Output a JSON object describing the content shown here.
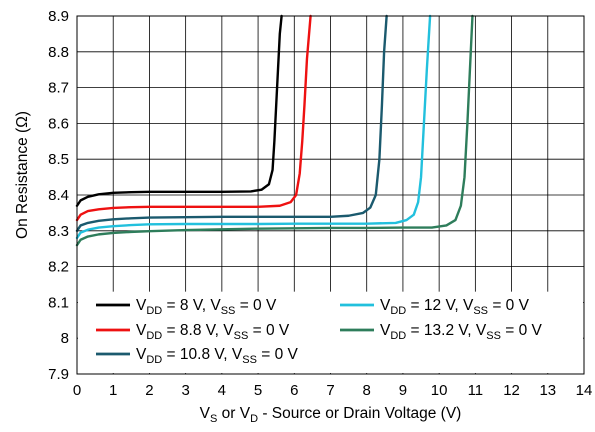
{
  "chart_data": {
    "type": "line",
    "title": "",
    "xlabel": {
      "main": "V",
      "parts": [
        {
          "t": "V"
        },
        {
          "t": "S",
          "sub": true
        },
        {
          "t": " or V"
        },
        {
          "t": "D",
          "sub": true
        },
        {
          "t": " - Source or Drain Voltage (V)"
        }
      ]
    },
    "ylabel": "On Resistance (Ω)",
    "xlim": [
      0,
      14
    ],
    "ylim": [
      7.9,
      8.9
    ],
    "x_ticks": [
      "0",
      "1",
      "2",
      "3",
      "4",
      "5",
      "6",
      "7",
      "8",
      "9",
      "10",
      "11",
      "12",
      "13",
      "14"
    ],
    "y_ticks": [
      "7.9",
      "8",
      "8.1",
      "8.2",
      "8.3",
      "8.4",
      "8.5",
      "8.6",
      "8.7",
      "8.8",
      "8.9"
    ],
    "y_tick_values": [
      7.9,
      8.0,
      8.1,
      8.2,
      8.3,
      8.4,
      8.5,
      8.6,
      8.7,
      8.8,
      8.9
    ],
    "grid": true,
    "legend_position": "bottom",
    "series": [
      {
        "name": "VDD = 8 V, VSS = 0 V",
        "label_parts": [
          {
            "t": "V"
          },
          {
            "t": "DD",
            "sub": true
          },
          {
            "t": " = 8 V, V"
          },
          {
            "t": "SS",
            "sub": true
          },
          {
            "t": " = 0 V"
          }
        ],
        "color": "#000000",
        "x": [
          0,
          0.1,
          0.3,
          0.6,
          1.0,
          1.5,
          2.0,
          3.0,
          4.0,
          4.8,
          5.1,
          5.3,
          5.4,
          5.45,
          5.5,
          5.55,
          5.6,
          5.65
        ],
        "y": [
          8.37,
          8.385,
          8.395,
          8.402,
          8.406,
          8.408,
          8.409,
          8.409,
          8.409,
          8.41,
          8.415,
          8.43,
          8.47,
          8.55,
          8.65,
          8.75,
          8.85,
          8.9
        ]
      },
      {
        "name": "VDD = 8.8 V, VSS = 0 V",
        "label_parts": [
          {
            "t": "V"
          },
          {
            "t": "DD",
            "sub": true
          },
          {
            "t": " = 8.8 V, V"
          },
          {
            "t": "SS",
            "sub": true
          },
          {
            "t": " = 0 V"
          }
        ],
        "color": "#ee1111",
        "x": [
          0,
          0.1,
          0.3,
          0.6,
          1.0,
          1.5,
          2.0,
          3.0,
          4.0,
          5.0,
          5.6,
          5.9,
          6.05,
          6.15,
          6.22,
          6.28,
          6.35,
          6.45
        ],
        "y": [
          8.33,
          8.345,
          8.355,
          8.36,
          8.364,
          8.366,
          8.367,
          8.367,
          8.367,
          8.367,
          8.37,
          8.38,
          8.4,
          8.46,
          8.55,
          8.65,
          8.78,
          8.9
        ]
      },
      {
        "name": "VDD = 10.8 V, VSS = 0 V",
        "label_parts": [
          {
            "t": "V"
          },
          {
            "t": "DD",
            "sub": true
          },
          {
            "t": " = 10.8 V, V"
          },
          {
            "t": "SS",
            "sub": true
          },
          {
            "t": " = 0 V"
          }
        ],
        "color": "#1b5a6e",
        "x": [
          0,
          0.1,
          0.3,
          0.6,
          1.0,
          1.5,
          2.0,
          3.0,
          4.0,
          5.0,
          6.0,
          7.0,
          7.5,
          7.9,
          8.1,
          8.25,
          8.35,
          8.42,
          8.48,
          8.55
        ],
        "y": [
          8.3,
          8.315,
          8.322,
          8.328,
          8.332,
          8.335,
          8.337,
          8.338,
          8.339,
          8.339,
          8.339,
          8.339,
          8.342,
          8.35,
          8.365,
          8.4,
          8.5,
          8.65,
          8.8,
          8.9
        ]
      },
      {
        "name": "VDD = 12 V, VSS = 0 V",
        "label_parts": [
          {
            "t": "V"
          },
          {
            "t": "DD",
            "sub": true
          },
          {
            "t": " = 12 V, V"
          },
          {
            "t": "SS",
            "sub": true
          },
          {
            "t": " = 0 V"
          }
        ],
        "color": "#22c0dd",
        "x": [
          0,
          0.1,
          0.3,
          0.6,
          1.0,
          1.5,
          2.0,
          3.0,
          4.0,
          5.0,
          6.0,
          7.0,
          8.0,
          8.8,
          9.1,
          9.3,
          9.42,
          9.5,
          9.58,
          9.66,
          9.75
        ],
        "y": [
          8.28,
          8.295,
          8.303,
          8.309,
          8.313,
          8.316,
          8.318,
          8.319,
          8.319,
          8.319,
          8.32,
          8.32,
          8.32,
          8.322,
          8.33,
          8.345,
          8.38,
          8.45,
          8.6,
          8.75,
          8.9
        ]
      },
      {
        "name": "VDD = 13.2 V, VSS = 0 V",
        "label_parts": [
          {
            "t": "V"
          },
          {
            "t": "DD",
            "sub": true
          },
          {
            "t": " = 13.2 V, V"
          },
          {
            "t": "SS",
            "sub": true
          },
          {
            "t": " = 0 V"
          }
        ],
        "color": "#2e7d5b",
        "x": [
          0,
          0.1,
          0.3,
          0.6,
          1.0,
          1.5,
          2.0,
          3.0,
          4.0,
          5.0,
          6.0,
          7.0,
          8.0,
          9.0,
          9.8,
          10.2,
          10.45,
          10.6,
          10.7,
          10.78,
          10.85,
          10.92
        ],
        "y": [
          8.26,
          8.275,
          8.284,
          8.29,
          8.294,
          8.297,
          8.299,
          8.302,
          8.304,
          8.306,
          8.307,
          8.308,
          8.308,
          8.309,
          8.309,
          8.315,
          8.33,
          8.37,
          8.45,
          8.6,
          8.75,
          8.9
        ]
      }
    ]
  }
}
